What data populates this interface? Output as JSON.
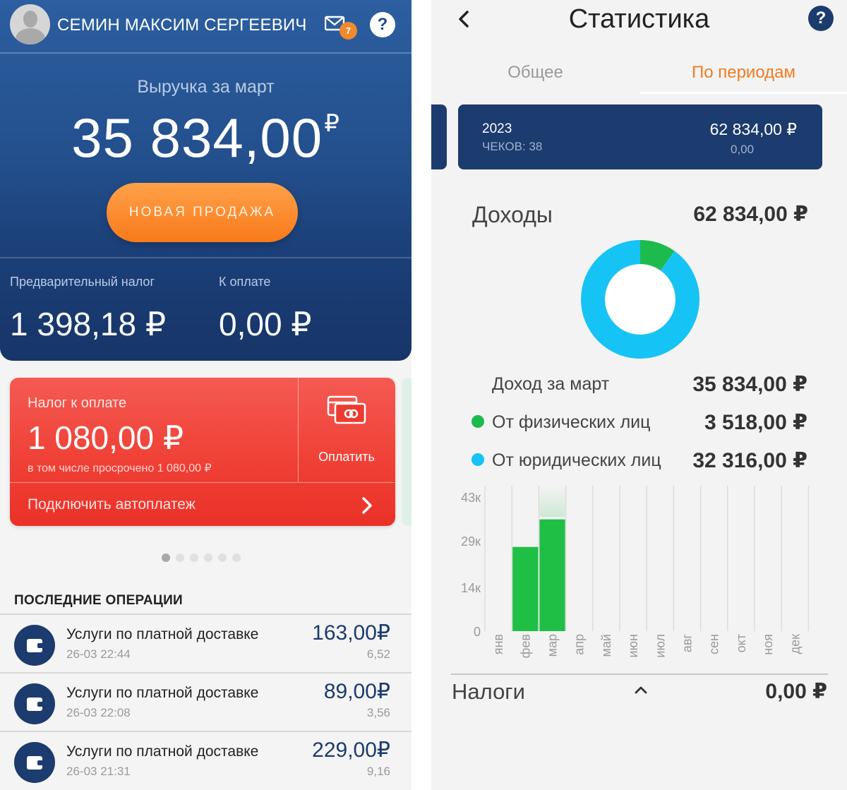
{
  "left": {
    "user_name": "СЕМИН МАКСИМ СЕРГЕЕВИЧ",
    "mail_badge": "7",
    "help": "?",
    "revenue_label": "Выручка за март",
    "revenue_amount": "35 834,00",
    "currency_sign": "₽",
    "new_sale_label": "НОВАЯ ПРОДАЖА",
    "tax_pre_label": "Предварительный налог",
    "tax_pre_value": "1 398,18 ₽",
    "tax_pay_label": "К оплате",
    "tax_pay_value": "0,00 ₽",
    "tax_card": {
      "label": "Налог к оплате",
      "amount": "1 080,00 ₽",
      "overdue": "в том числе просрочено 1 080,00 ₽",
      "pay_label": "Оплатить",
      "autopay_label": "Подключить автоплатеж"
    },
    "carousel": {
      "count": 6,
      "active": 0
    },
    "ops_title": "ПОСЛЕДНИЕ ОПЕРАЦИИ",
    "operations": [
      {
        "title": "Услуги по платной доставке",
        "date": "26-03 22:44",
        "amount": "163,00₽",
        "tax": "6,52"
      },
      {
        "title": "Услуги по платной доставке",
        "date": "26-03 22:08",
        "amount": "89,00₽",
        "tax": "3,56"
      },
      {
        "title": "Услуги по платной доставке",
        "date": "26-03 21:31",
        "amount": "229,00₽",
        "tax": "9,16"
      }
    ]
  },
  "right": {
    "title": "Статистика",
    "help": "?",
    "tabs": {
      "general": "Общее",
      "periods": "По периодам"
    },
    "year_card": {
      "year": "2023",
      "checks": "ЧЕКОВ: 38",
      "amount": "62 834,00 ₽",
      "sub": "0,00"
    },
    "income_label": "Доходы",
    "income_total": "62 834,00 ₽",
    "month_income_label": "Доход за март",
    "month_income_value": "35 834,00 ₽",
    "individuals_label": "От физических лиц",
    "individuals_value": "3 518,00 ₽",
    "legal_label": "От юридических лиц",
    "legal_value": "32 316,00 ₽",
    "taxes_label": "Налоги",
    "taxes_value": "0,00 ₽",
    "colors": {
      "individuals": "#1dbb4e",
      "legal": "#16c3f5",
      "bars": "#1fbf46",
      "accent": "#f07c21",
      "navy": "#1c3b6e"
    }
  },
  "chart_data": [
    {
      "type": "pie",
      "title": "Доходы",
      "categories": [
        "От физических лиц",
        "От юридических лиц"
      ],
      "values": [
        3518,
        32316
      ],
      "colors": [
        "#1dbb4e",
        "#16c3f5"
      ]
    },
    {
      "type": "bar",
      "categories": [
        "янв",
        "фев",
        "мар",
        "апр",
        "май",
        "июн",
        "июл",
        "авг",
        "сен",
        "окт",
        "ноя",
        "дек"
      ],
      "values": [
        0,
        27000,
        35834,
        0,
        0,
        0,
        0,
        0,
        0,
        0,
        0,
        0
      ],
      "yticks": [
        "0",
        "14к",
        "29к",
        "43к"
      ],
      "ylim": [
        0,
        43000
      ],
      "selected": "мар"
    }
  ]
}
